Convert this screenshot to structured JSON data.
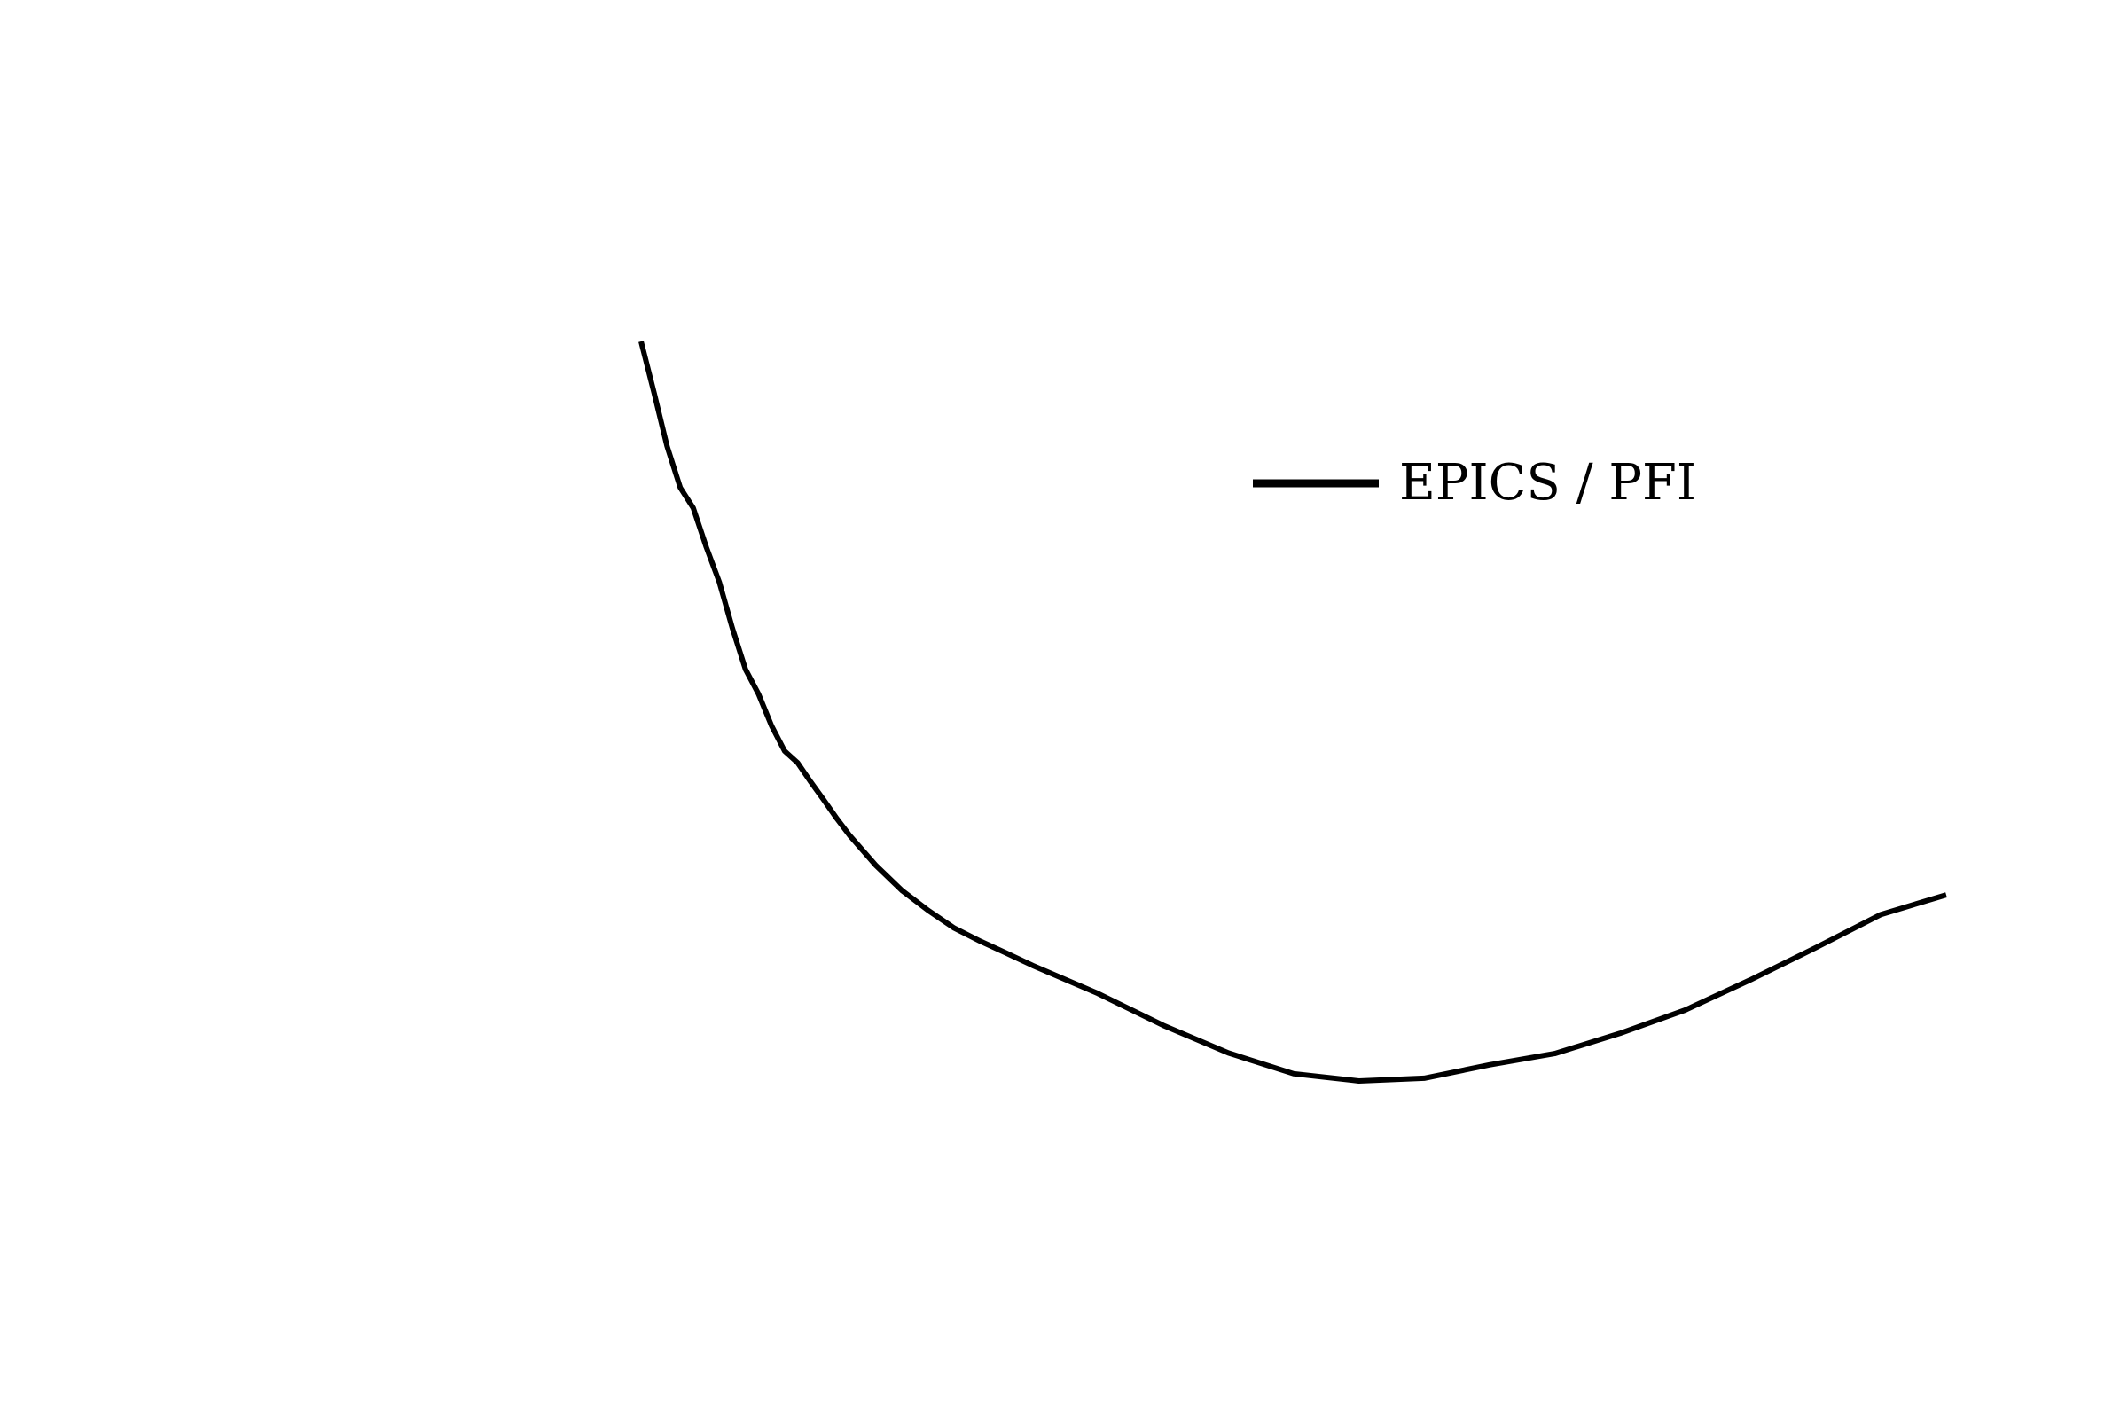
{
  "chart_data": {
    "type": "line",
    "title": "",
    "xlabel": "",
    "ylabel": "",
    "axes_visible": false,
    "grid": false,
    "legend_position": "upper-right",
    "series": [
      {
        "name": "EPICS / PFI",
        "color": "#000000",
        "x": [
          0.0,
          0.01,
          0.02,
          0.03,
          0.04,
          0.05,
          0.06,
          0.07,
          0.08,
          0.09,
          0.1,
          0.11,
          0.12,
          0.13,
          0.14,
          0.15,
          0.16,
          0.18,
          0.2,
          0.22,
          0.24,
          0.26,
          0.28,
          0.3,
          0.35,
          0.4,
          0.45,
          0.5,
          0.55,
          0.6,
          0.65,
          0.7,
          0.75,
          0.8,
          0.85,
          0.9,
          0.95,
          1.0
        ],
        "y": [
          0.0,
          0.034,
          0.0694,
          0.0966,
          0.1102,
          0.136,
          0.1592,
          0.1896,
          0.2168,
          0.2332,
          0.2542,
          0.2708,
          0.2786,
          0.2913,
          0.3032,
          0.3155,
          0.3268,
          0.3466,
          0.3631,
          0.3762,
          0.3879,
          0.3966,
          0.4045,
          0.4126,
          0.4311,
          0.4522,
          0.4705,
          0.4842,
          0.489,
          0.4872,
          0.4783,
          0.4709,
          0.4575,
          0.4421,
          0.4221,
          0.4009,
          0.3789,
          0.3659
        ]
      }
    ]
  }
}
